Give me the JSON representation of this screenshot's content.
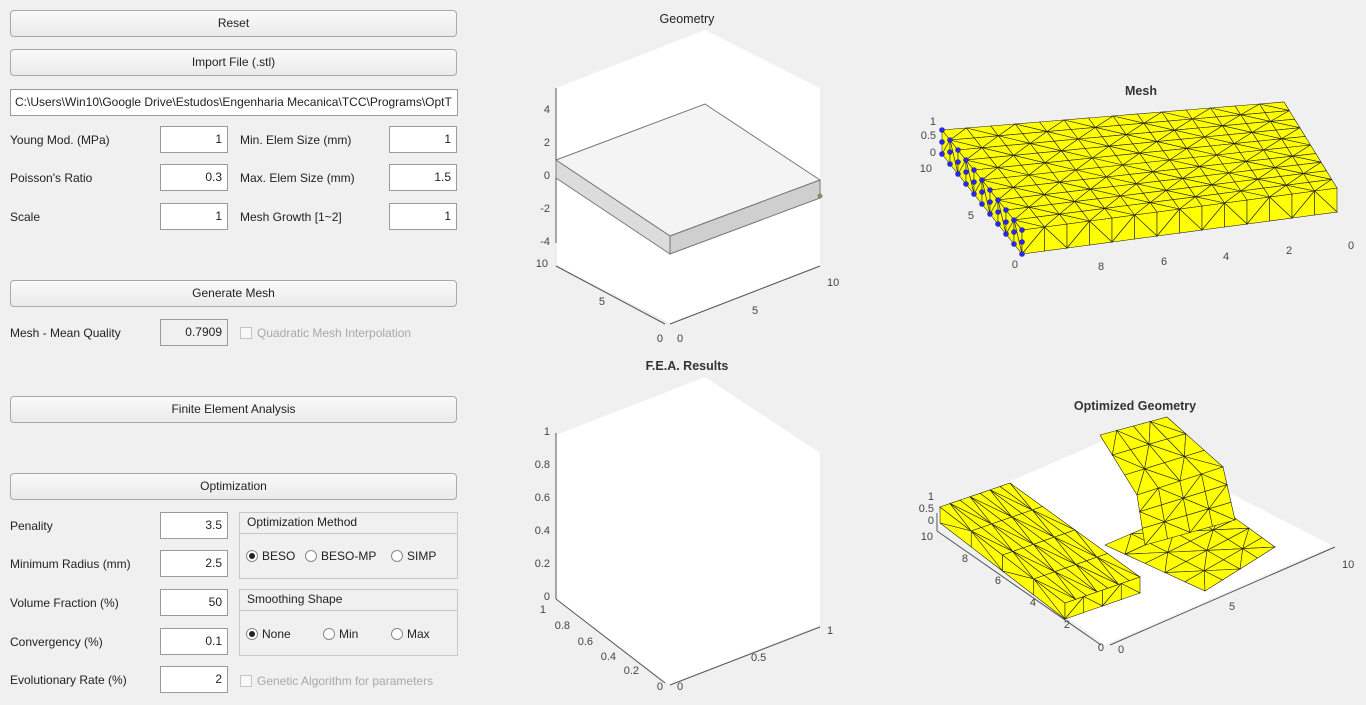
{
  "buttons": {
    "reset": "Reset",
    "import": "Import File (.stl)",
    "generate_mesh": "Generate Mesh",
    "fea": "Finite Element Analysis",
    "optimization": "Optimization"
  },
  "file_path": "C:\\Users\\Win10\\Google Drive\\Estudos\\Engenharia Mecanica\\TCC\\Programs\\OptT",
  "material": {
    "young_label": "Young Mod. (MPa)",
    "young_value": "1",
    "poisson_label": "Poisson's Ratio",
    "poisson_value": "0.3",
    "scale_label": "Scale",
    "scale_value": "1"
  },
  "mesh": {
    "min_label": "Min. Elem Size (mm)",
    "min_value": "1",
    "max_label": "Max. Elem Size (mm)",
    "max_value": "1.5",
    "growth_label": "Mesh Growth [1~2]",
    "growth_value": "1",
    "quality_label": "Mesh - Mean Quality",
    "quality_value": "0.7909",
    "quadratic_label": "Quadratic Mesh Interpolation",
    "quadratic_checked": false
  },
  "optimization": {
    "penality_label": "Penality",
    "penality_value": "3.5",
    "radius_label": "Minimum Radius (mm)",
    "radius_value": "2.5",
    "volume_label": "Volume Fraction (%)",
    "volume_value": "50",
    "convergency_label": "Convergency (%)",
    "convergency_value": "0.1",
    "evolution_label": "Evolutionary Rate (%)",
    "evolution_value": "2",
    "genetic_label": "Genetic Algorithm for parameters",
    "genetic_checked": false,
    "method_title": "Optimization Method",
    "methods": [
      "BESO",
      "BESO-MP",
      "SIMP"
    ],
    "method_selected": "BESO",
    "smoothing_title": "Smoothing Shape",
    "smoothing": [
      "None",
      "Min",
      "Max"
    ],
    "smoothing_selected": "None"
  },
  "plots": {
    "geometry": {
      "title": "Geometry",
      "z_ticks": [
        "4",
        "2",
        "0",
        "-2",
        "-4"
      ],
      "y_ticks": [
        "10",
        "5",
        "0"
      ],
      "x_ticks": [
        "0",
        "5",
        "10"
      ]
    },
    "mesh": {
      "title": "Mesh",
      "z_ticks": [
        "1",
        "0.5",
        "0"
      ],
      "y_ticks": [
        "10",
        "5",
        "0"
      ],
      "x_ticks": [
        "8",
        "6",
        "4",
        "2",
        "0"
      ],
      "mesh_color": "#ffff00"
    },
    "fea": {
      "title": "F.E.A. Results",
      "z_ticks": [
        "1",
        "0.8",
        "0.6",
        "0.4",
        "0.2",
        "0"
      ],
      "y_ticks": [
        "1",
        "0.8",
        "0.6",
        "0.4",
        "0.2",
        "0"
      ],
      "x_ticks": [
        "0",
        "0.5",
        "1"
      ]
    },
    "optimized": {
      "title": "Optimized Geometry",
      "z_ticks": [
        "1",
        "0.5",
        "0"
      ],
      "y_ticks": [
        "10",
        "8",
        "6",
        "4",
        "2",
        "0"
      ],
      "x_ticks": [
        "0",
        "5",
        "10"
      ],
      "mesh_color": "#ffff00"
    }
  }
}
